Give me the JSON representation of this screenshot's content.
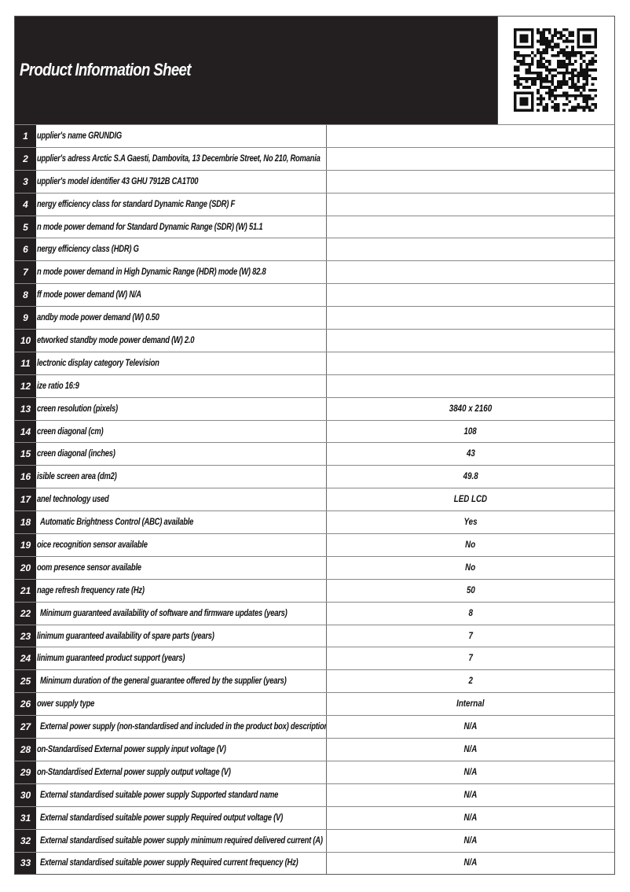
{
  "header": {
    "title": "Product Information Sheet",
    "qr_icon": "qr-code"
  },
  "rows": [
    {
      "n": "1",
      "label": "upplier's name  GRUNDIG",
      "value": ""
    },
    {
      "n": "2",
      "label": "upplier's adress Arctic S.A  Gaesti, Dambovita, 13 Decembrie Street, No 210, Romania",
      "value": ""
    },
    {
      "n": "3",
      "label": "upplier's model identifier 43 GHU 7912B CA1T00",
      "value": ""
    },
    {
      "n": "4",
      "label": "nergy efficiency class for standard Dynamic Range (SDR) F",
      "value": ""
    },
    {
      "n": "5",
      "label": "n mode power demand for Standard Dynamic Range (SDR) (W) 51.1",
      "value": ""
    },
    {
      "n": "6",
      "label": "nergy efficiency class (HDR) G",
      "value": ""
    },
    {
      "n": "7",
      "label": "n mode power demand in High Dynamic Range (HDR) mode  (W) 82.8",
      "value": ""
    },
    {
      "n": "8",
      "label": "ff mode power demand (W) N/A",
      "value": ""
    },
    {
      "n": "9",
      "label": "andby mode power demand  (W) 0.50",
      "value": ""
    },
    {
      "n": "10",
      "label": "etworked standby mode power demand (W) 2.0",
      "value": ""
    },
    {
      "n": "11",
      "label": "lectronic display category Television",
      "value": ""
    },
    {
      "n": "12",
      "label": "ize ratio 16:9",
      "value": ""
    },
    {
      "n": "13",
      "label": "creen resolution (pixels)",
      "value": "3840 x 2160"
    },
    {
      "n": "14",
      "label": "creen diagonal (cm)",
      "value": "108"
    },
    {
      "n": "15",
      "label": "creen diagonal (inches)",
      "value": "43"
    },
    {
      "n": "16",
      "label": "isible screen area (dm2)",
      "value": "49.8"
    },
    {
      "n": "17",
      "label": "anel technology used",
      "value": "LED LCD"
    },
    {
      "n": "18",
      "label": "Automatic Brightness Control (ABC) available",
      "value": "Yes",
      "indent": true
    },
    {
      "n": "19",
      "label": "oice recognition sensor available",
      "value": "No"
    },
    {
      "n": "20",
      "label": "oom presence sensor available",
      "value": "No"
    },
    {
      "n": "21",
      "label": "nage refresh frequency rate (Hz)",
      "value": "50"
    },
    {
      "n": "22",
      "label": "Minimum guaranteed availability of software and firmware updates (years)",
      "value": "8",
      "indent": true
    },
    {
      "n": "23",
      "label": "linimum guaranteed availability of spare parts (years)",
      "value": "7"
    },
    {
      "n": "24",
      "label": "linimum guaranteed product support (years)",
      "value": "7"
    },
    {
      "n": "25",
      "label": "Minimum duration of the general guarantee offered by the supplier (years)",
      "value": "2",
      "indent": true
    },
    {
      "n": "26",
      "label": "ower supply type",
      "value": "Internal"
    },
    {
      "n": "27",
      "label": "External power supply (non-standardised and included in the product box) description",
      "value": "N/A",
      "indent": true
    },
    {
      "n": "28",
      "label": "on-Standardised External power supply input voltage (V)",
      "value": "N/A"
    },
    {
      "n": "29",
      "label": "on-Standardised External power supply output voltage (V)",
      "value": "N/A"
    },
    {
      "n": "30",
      "label": "External standardised suitable power supply Supported standard name",
      "value": "N/A",
      "indent": true
    },
    {
      "n": "31",
      "label": "External standardised suitable power supply Required output voltage (V)",
      "value": "N/A",
      "indent": true
    },
    {
      "n": "32",
      "label": "External standardised suitable  power supply minimum required delivered current  (A)",
      "value": "N/A",
      "indent": true
    },
    {
      "n": "33",
      "label": "External standardised suitable power supply Required current frequency (Hz)",
      "value": "N/A",
      "indent": true
    }
  ]
}
